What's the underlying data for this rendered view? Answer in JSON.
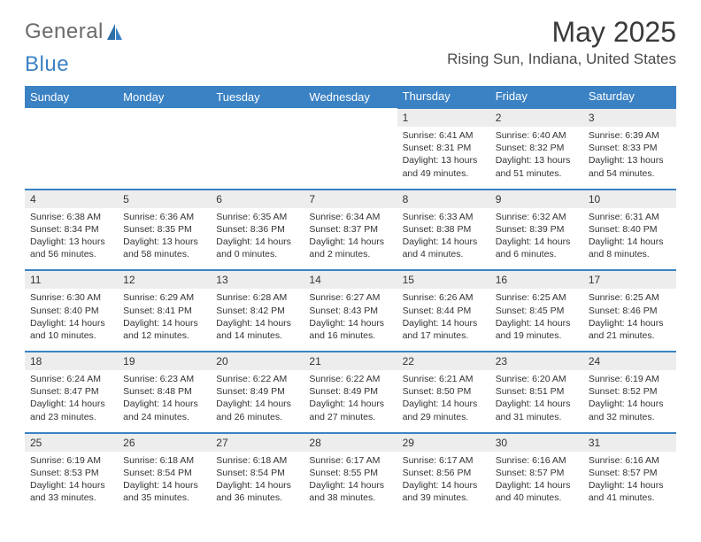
{
  "logo": {
    "text1": "General",
    "text2": "Blue"
  },
  "title": "May 2025",
  "location": "Rising Sun, Indiana, United States",
  "colors": {
    "header_bg": "#3b82c4",
    "header_text": "#ffffff",
    "daynum_bg": "#ededed",
    "week_border": "#3b82c4",
    "body_text": "#333333"
  },
  "weekdays": [
    "Sunday",
    "Monday",
    "Tuesday",
    "Wednesday",
    "Thursday",
    "Friday",
    "Saturday"
  ],
  "weeks": [
    [
      null,
      null,
      null,
      null,
      {
        "n": "1",
        "sr": "Sunrise: 6:41 AM",
        "ss": "Sunset: 8:31 PM",
        "dl1": "Daylight: 13 hours",
        "dl2": "and 49 minutes."
      },
      {
        "n": "2",
        "sr": "Sunrise: 6:40 AM",
        "ss": "Sunset: 8:32 PM",
        "dl1": "Daylight: 13 hours",
        "dl2": "and 51 minutes."
      },
      {
        "n": "3",
        "sr": "Sunrise: 6:39 AM",
        "ss": "Sunset: 8:33 PM",
        "dl1": "Daylight: 13 hours",
        "dl2": "and 54 minutes."
      }
    ],
    [
      {
        "n": "4",
        "sr": "Sunrise: 6:38 AM",
        "ss": "Sunset: 8:34 PM",
        "dl1": "Daylight: 13 hours",
        "dl2": "and 56 minutes."
      },
      {
        "n": "5",
        "sr": "Sunrise: 6:36 AM",
        "ss": "Sunset: 8:35 PM",
        "dl1": "Daylight: 13 hours",
        "dl2": "and 58 minutes."
      },
      {
        "n": "6",
        "sr": "Sunrise: 6:35 AM",
        "ss": "Sunset: 8:36 PM",
        "dl1": "Daylight: 14 hours",
        "dl2": "and 0 minutes."
      },
      {
        "n": "7",
        "sr": "Sunrise: 6:34 AM",
        "ss": "Sunset: 8:37 PM",
        "dl1": "Daylight: 14 hours",
        "dl2": "and 2 minutes."
      },
      {
        "n": "8",
        "sr": "Sunrise: 6:33 AM",
        "ss": "Sunset: 8:38 PM",
        "dl1": "Daylight: 14 hours",
        "dl2": "and 4 minutes."
      },
      {
        "n": "9",
        "sr": "Sunrise: 6:32 AM",
        "ss": "Sunset: 8:39 PM",
        "dl1": "Daylight: 14 hours",
        "dl2": "and 6 minutes."
      },
      {
        "n": "10",
        "sr": "Sunrise: 6:31 AM",
        "ss": "Sunset: 8:40 PM",
        "dl1": "Daylight: 14 hours",
        "dl2": "and 8 minutes."
      }
    ],
    [
      {
        "n": "11",
        "sr": "Sunrise: 6:30 AM",
        "ss": "Sunset: 8:40 PM",
        "dl1": "Daylight: 14 hours",
        "dl2": "and 10 minutes."
      },
      {
        "n": "12",
        "sr": "Sunrise: 6:29 AM",
        "ss": "Sunset: 8:41 PM",
        "dl1": "Daylight: 14 hours",
        "dl2": "and 12 minutes."
      },
      {
        "n": "13",
        "sr": "Sunrise: 6:28 AM",
        "ss": "Sunset: 8:42 PM",
        "dl1": "Daylight: 14 hours",
        "dl2": "and 14 minutes."
      },
      {
        "n": "14",
        "sr": "Sunrise: 6:27 AM",
        "ss": "Sunset: 8:43 PM",
        "dl1": "Daylight: 14 hours",
        "dl2": "and 16 minutes."
      },
      {
        "n": "15",
        "sr": "Sunrise: 6:26 AM",
        "ss": "Sunset: 8:44 PM",
        "dl1": "Daylight: 14 hours",
        "dl2": "and 17 minutes."
      },
      {
        "n": "16",
        "sr": "Sunrise: 6:25 AM",
        "ss": "Sunset: 8:45 PM",
        "dl1": "Daylight: 14 hours",
        "dl2": "and 19 minutes."
      },
      {
        "n": "17",
        "sr": "Sunrise: 6:25 AM",
        "ss": "Sunset: 8:46 PM",
        "dl1": "Daylight: 14 hours",
        "dl2": "and 21 minutes."
      }
    ],
    [
      {
        "n": "18",
        "sr": "Sunrise: 6:24 AM",
        "ss": "Sunset: 8:47 PM",
        "dl1": "Daylight: 14 hours",
        "dl2": "and 23 minutes."
      },
      {
        "n": "19",
        "sr": "Sunrise: 6:23 AM",
        "ss": "Sunset: 8:48 PM",
        "dl1": "Daylight: 14 hours",
        "dl2": "and 24 minutes."
      },
      {
        "n": "20",
        "sr": "Sunrise: 6:22 AM",
        "ss": "Sunset: 8:49 PM",
        "dl1": "Daylight: 14 hours",
        "dl2": "and 26 minutes."
      },
      {
        "n": "21",
        "sr": "Sunrise: 6:22 AM",
        "ss": "Sunset: 8:49 PM",
        "dl1": "Daylight: 14 hours",
        "dl2": "and 27 minutes."
      },
      {
        "n": "22",
        "sr": "Sunrise: 6:21 AM",
        "ss": "Sunset: 8:50 PM",
        "dl1": "Daylight: 14 hours",
        "dl2": "and 29 minutes."
      },
      {
        "n": "23",
        "sr": "Sunrise: 6:20 AM",
        "ss": "Sunset: 8:51 PM",
        "dl1": "Daylight: 14 hours",
        "dl2": "and 31 minutes."
      },
      {
        "n": "24",
        "sr": "Sunrise: 6:19 AM",
        "ss": "Sunset: 8:52 PM",
        "dl1": "Daylight: 14 hours",
        "dl2": "and 32 minutes."
      }
    ],
    [
      {
        "n": "25",
        "sr": "Sunrise: 6:19 AM",
        "ss": "Sunset: 8:53 PM",
        "dl1": "Daylight: 14 hours",
        "dl2": "and 33 minutes."
      },
      {
        "n": "26",
        "sr": "Sunrise: 6:18 AM",
        "ss": "Sunset: 8:54 PM",
        "dl1": "Daylight: 14 hours",
        "dl2": "and 35 minutes."
      },
      {
        "n": "27",
        "sr": "Sunrise: 6:18 AM",
        "ss": "Sunset: 8:54 PM",
        "dl1": "Daylight: 14 hours",
        "dl2": "and 36 minutes."
      },
      {
        "n": "28",
        "sr": "Sunrise: 6:17 AM",
        "ss": "Sunset: 8:55 PM",
        "dl1": "Daylight: 14 hours",
        "dl2": "and 38 minutes."
      },
      {
        "n": "29",
        "sr": "Sunrise: 6:17 AM",
        "ss": "Sunset: 8:56 PM",
        "dl1": "Daylight: 14 hours",
        "dl2": "and 39 minutes."
      },
      {
        "n": "30",
        "sr": "Sunrise: 6:16 AM",
        "ss": "Sunset: 8:57 PM",
        "dl1": "Daylight: 14 hours",
        "dl2": "and 40 minutes."
      },
      {
        "n": "31",
        "sr": "Sunrise: 6:16 AM",
        "ss": "Sunset: 8:57 PM",
        "dl1": "Daylight: 14 hours",
        "dl2": "and 41 minutes."
      }
    ]
  ]
}
